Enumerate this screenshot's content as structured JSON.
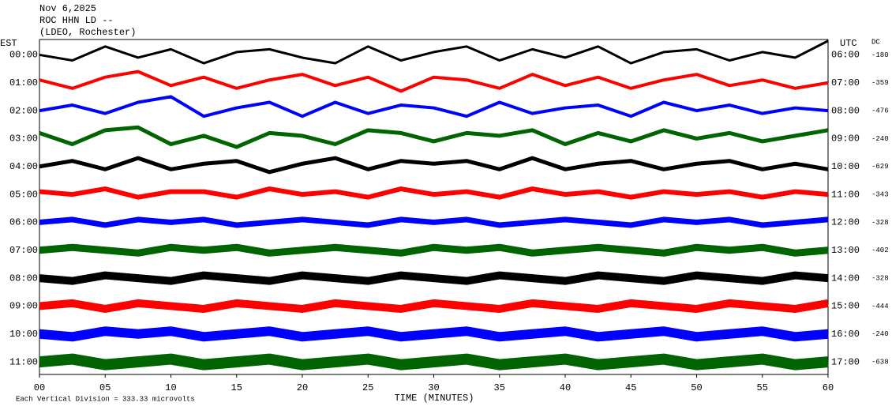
{
  "header": {
    "date": "Nov 6,2025",
    "station": "ROC HHN LD --",
    "location": "(LDEO, Rochester)"
  },
  "chart_data": {
    "type": "helicorder",
    "x_label": "TIME (MINUTES)",
    "left_axis_label": "EST",
    "right_axis_label": "UTC",
    "dc_label": "DC",
    "footer": "Each Vertical Division = 333.33 microvolts",
    "xlim": [
      0,
      60
    ],
    "xticks": [
      {
        "value": 0,
        "label": "00"
      },
      {
        "value": 5,
        "label": "05"
      },
      10,
      15,
      20,
      25,
      30,
      35,
      40,
      45,
      50,
      55,
      60
    ],
    "x": [
      0,
      2.5,
      5,
      7.5,
      10,
      12.5,
      15,
      17.5,
      20,
      22.5,
      25,
      27.5,
      30,
      32.5,
      35,
      37.5,
      40,
      42.5,
      45,
      47.5,
      50,
      52.5,
      55,
      57.5,
      60
    ],
    "series": [
      {
        "name": "00:00",
        "utc": "06:00",
        "dc": -180,
        "color": "#000000",
        "values": [
          0,
          -0.2,
          0.3,
          -0.1,
          0.2,
          -0.3,
          0.1,
          0.2,
          -0.1,
          -0.3,
          0.3,
          -0.2,
          0.1,
          0.3,
          -0.2,
          0.2,
          -0.1,
          0.3,
          -0.3,
          0.1,
          0.2,
          -0.2,
          0.1,
          -0.1,
          0.5
        ]
      },
      {
        "name": "01:00",
        "utc": "07:00",
        "dc": -359,
        "color": "#ff0000",
        "values": [
          0.1,
          -0.2,
          0.2,
          0.4,
          -0.1,
          0.2,
          -0.2,
          0.1,
          0.3,
          -0.1,
          0.2,
          -0.3,
          0.2,
          0.1,
          -0.2,
          0.3,
          -0.1,
          0.2,
          -0.2,
          0.1,
          0.3,
          -0.1,
          0.1,
          -0.2,
          0
        ]
      },
      {
        "name": "02:00",
        "utc": "08:00",
        "dc": -476,
        "color": "#0000ff",
        "values": [
          0,
          0.2,
          -0.1,
          0.3,
          0.5,
          -0.2,
          0.1,
          0.3,
          -0.2,
          0.3,
          -0.1,
          0.2,
          0.1,
          -0.2,
          0.3,
          -0.1,
          0.1,
          0.2,
          -0.2,
          0.3,
          0,
          0.2,
          -0.1,
          0.1,
          0
        ]
      },
      {
        "name": "03:00",
        "utc": "09:00",
        "dc": -240,
        "color": "#006400",
        "values": [
          0.2,
          -0.2,
          0.3,
          0.4,
          -0.2,
          0.1,
          -0.3,
          0.2,
          0.1,
          -0.2,
          0.3,
          0.2,
          -0.1,
          0.2,
          0.1,
          0.3,
          -0.2,
          0.2,
          -0.1,
          0.3,
          0,
          0.2,
          -0.1,
          0.1,
          0.3
        ]
      },
      {
        "name": "04:00",
        "utc": "10:00",
        "dc": -629,
        "color": "#000000",
        "values": [
          0,
          0.2,
          -0.1,
          0.3,
          -0.1,
          0.1,
          0.2,
          -0.2,
          0.1,
          0.3,
          -0.1,
          0.2,
          0.1,
          0.2,
          -0.1,
          0.3,
          -0.1,
          0.1,
          0.2,
          -0.1,
          0.1,
          0.2,
          -0.1,
          0.1,
          -0.1
        ]
      },
      {
        "name": "05:00",
        "utc": "11:00",
        "dc": -343,
        "color": "#ff0000",
        "values": [
          0.1,
          0,
          0.2,
          -0.1,
          0.1,
          0.1,
          -0.1,
          0.2,
          0,
          0.1,
          -0.1,
          0.2,
          0,
          0.1,
          -0.1,
          0.2,
          0,
          0.1,
          -0.1,
          0.1,
          0,
          0.1,
          -0.1,
          0.1,
          0
        ]
      },
      {
        "name": "06:00",
        "utc": "12:00",
        "dc": -328,
        "color": "#0000ff",
        "values": [
          0,
          0.1,
          -0.1,
          0.1,
          0,
          0.1,
          -0.1,
          0,
          0.1,
          0,
          -0.1,
          0.1,
          0,
          0.1,
          -0.1,
          0,
          0.1,
          0,
          -0.1,
          0.1,
          0,
          0.1,
          -0.1,
          0,
          0.1
        ]
      },
      {
        "name": "07:00",
        "utc": "13:00",
        "dc": -402,
        "color": "#006400",
        "values": [
          0,
          0.1,
          0,
          -0.1,
          0.1,
          0,
          0.1,
          -0.1,
          0,
          0.1,
          0,
          -0.1,
          0.1,
          0,
          0.1,
          -0.1,
          0,
          0.1,
          0,
          -0.1,
          0.1,
          0,
          0.1,
          -0.1,
          0
        ]
      },
      {
        "name": "08:00",
        "utc": "14:00",
        "dc": -328,
        "color": "#000000",
        "values": [
          0,
          -0.1,
          0.1,
          0,
          -0.1,
          0.1,
          0,
          -0.1,
          0.1,
          0,
          -0.1,
          0.1,
          0,
          -0.1,
          0.1,
          0,
          -0.1,
          0.1,
          0,
          -0.1,
          0.1,
          0,
          -0.1,
          0.1,
          0
        ]
      },
      {
        "name": "09:00",
        "utc": "15:00",
        "dc": -444,
        "color": "#ff0000",
        "values": [
          0,
          0.1,
          -0.1,
          0.1,
          0,
          -0.1,
          0.1,
          0,
          -0.1,
          0.1,
          0,
          -0.1,
          0.1,
          0,
          -0.1,
          0.1,
          0,
          -0.1,
          0.1,
          0,
          -0.1,
          0.1,
          0,
          -0.1,
          0.1
        ]
      },
      {
        "name": "10:00",
        "utc": "16:00",
        "dc": -240,
        "color": "#0000ff",
        "values": [
          0,
          -0.1,
          0.1,
          0,
          0.1,
          -0.1,
          0,
          0.1,
          -0.1,
          0,
          0.1,
          -0.1,
          0,
          0.1,
          -0.1,
          0,
          0.1,
          -0.1,
          0,
          0.1,
          -0.1,
          0,
          0.1,
          -0.1,
          0
        ]
      },
      {
        "name": "11:00",
        "utc": "17:00",
        "dc": -638,
        "color": "#006400",
        "values": [
          0,
          0.1,
          -0.1,
          0,
          0.1,
          -0.1,
          0,
          0.1,
          -0.1,
          0,
          0.1,
          -0.1,
          0,
          0.1,
          -0.1,
          0,
          0.1,
          -0.1,
          0,
          0.1,
          -0.1,
          0,
          0.1,
          -0.1,
          0
        ]
      }
    ]
  }
}
